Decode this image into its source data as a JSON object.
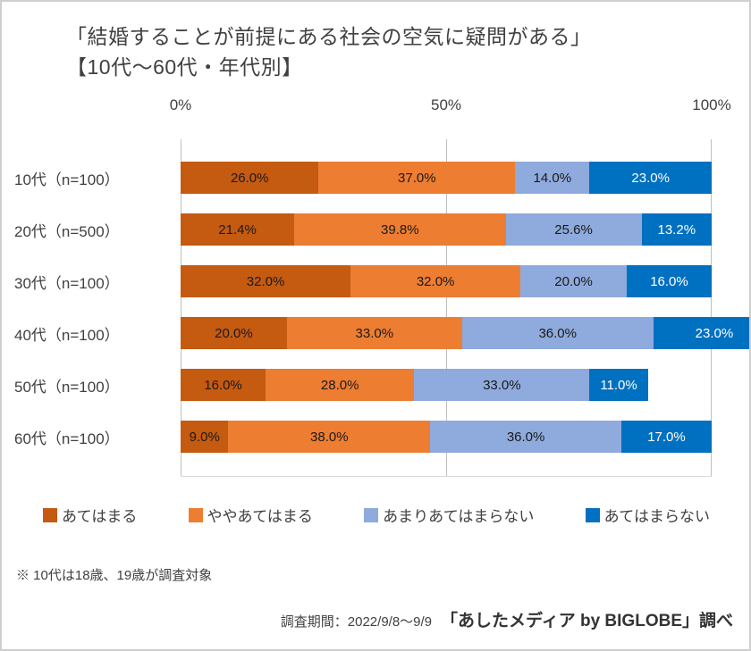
{
  "title": {
    "line1": "「結婚することが前提にある社会の空気に疑問がある」",
    "line2": "【10代〜60代・年代別】"
  },
  "chart_data": {
    "type": "bar",
    "orientation": "horizontal-stacked",
    "x_ticks": [
      "0%",
      "50%",
      "100%"
    ],
    "xlim": [
      0,
      100
    ],
    "grid": true,
    "legend_position": "bottom",
    "value_suffix": "%",
    "categories": [
      "10代（n=100）",
      "20代（n=500）",
      "30代（n=100）",
      "40代（n=100）",
      "50代（n=100）",
      "60代（n=100）"
    ],
    "series": [
      {
        "name": "あてはまる",
        "color": "#C55A11",
        "label_color": "#1a1a1a",
        "values": [
          26.0,
          21.4,
          32.0,
          20.0,
          16.0,
          9.0
        ]
      },
      {
        "name": "ややあてはまる",
        "color": "#ED7D31",
        "label_color": "#1a1a1a",
        "values": [
          37.0,
          39.8,
          32.0,
          33.0,
          28.0,
          38.0
        ]
      },
      {
        "name": "あまりあてはまらない",
        "color": "#8FAADC",
        "label_color": "#1a1a1a",
        "values": [
          14.0,
          25.6,
          20.0,
          36.0,
          33.0,
          36.0
        ]
      },
      {
        "name": "あてはまらない",
        "color": "#0070C0",
        "label_color": "#ffffff",
        "values": [
          23.0,
          13.2,
          16.0,
          23.0,
          11.0,
          17.0
        ]
      }
    ]
  },
  "footnote": "※ 10代は18歳、19歳が調査対象",
  "source": {
    "period": "調査期間：2022/9/8〜9/9",
    "credit": "「あしたメディア by BIGLOBE」調べ"
  }
}
